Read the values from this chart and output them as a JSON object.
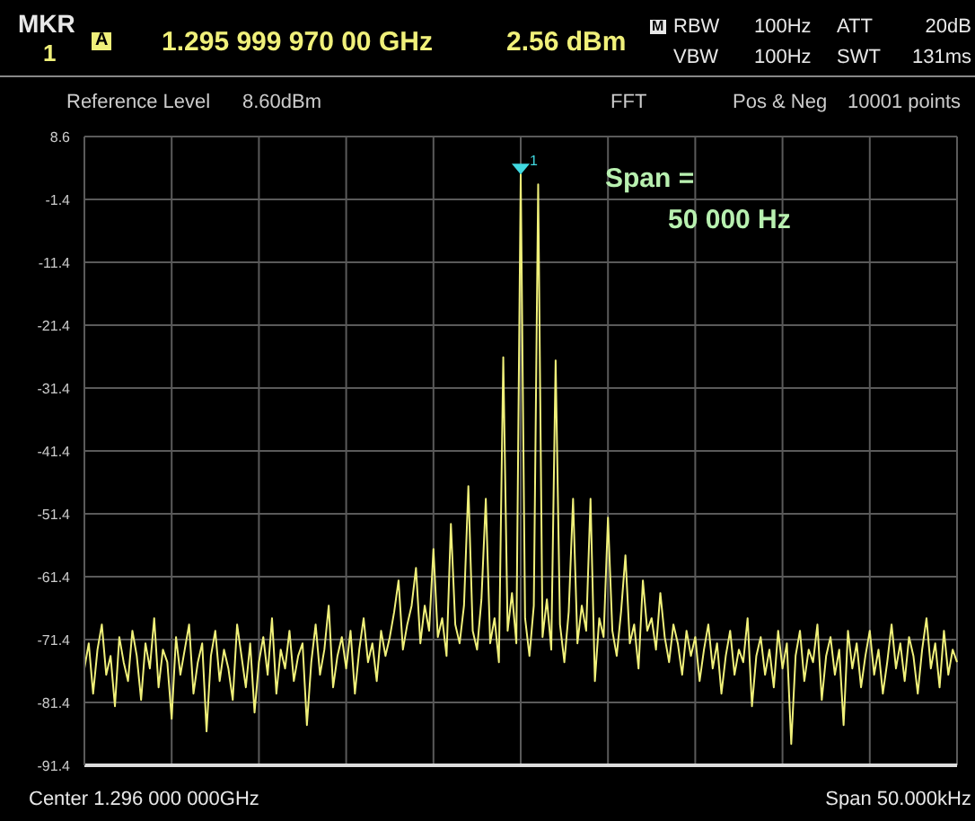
{
  "chart_data": {
    "type": "line",
    "categories": [
      null,
      null,
      null,
      null,
      null,
      null,
      null,
      null,
      null,
      null,
      null,
      null,
      null,
      null,
      null,
      null,
      null,
      null,
      null,
      null,
      null,
      null,
      null,
      null,
      null,
      null,
      null,
      null,
      null,
      null,
      null,
      null,
      null,
      null,
      null,
      null,
      null,
      null,
      null,
      null,
      null,
      null,
      null,
      null,
      null,
      null,
      null,
      null,
      null,
      null,
      null,
      null,
      null,
      null,
      null,
      null,
      null,
      null,
      null,
      null,
      null,
      null,
      null,
      null,
      null,
      null,
      null,
      null,
      null,
      null,
      null,
      null,
      null,
      null,
      null,
      null,
      null,
      null,
      null,
      null,
      null,
      null,
      null,
      null,
      null,
      null,
      null,
      null,
      null,
      null,
      null,
      null,
      null,
      null,
      null,
      null,
      null,
      null,
      null,
      null,
      null,
      null,
      null,
      null,
      null,
      null,
      null,
      null,
      null,
      null,
      null,
      null,
      null,
      null,
      null,
      null,
      null,
      null,
      null,
      null,
      null,
      null,
      null,
      null,
      null,
      null,
      null,
      null,
      null,
      null,
      null,
      null,
      null,
      null,
      null,
      null,
      null,
      null,
      null,
      null,
      null,
      null,
      null,
      null,
      null,
      null,
      null,
      null,
      null,
      null,
      null,
      null,
      null,
      null,
      null,
      null,
      null,
      null,
      null,
      null,
      null,
      null,
      null,
      null,
      null,
      null,
      null,
      null,
      null,
      null,
      null,
      null,
      null,
      null,
      null,
      null,
      null,
      null,
      null,
      null,
      null,
      null,
      null,
      null,
      null,
      null,
      null,
      null,
      null,
      null,
      null,
      null,
      null,
      null,
      null,
      null,
      null,
      null,
      null,
      null,
      null
    ],
    "series": [
      {
        "color": "#f0f07a",
        "values": [
          -76,
          -72,
          -80,
          -73,
          -69,
          -77,
          -74,
          -82,
          -71,
          -75,
          -78,
          -70,
          -74,
          -81,
          -72,
          -76,
          -68,
          -79,
          -73,
          -75,
          -84,
          -71,
          -77,
          -73,
          -69,
          -80,
          -75,
          -72,
          -86,
          -74,
          -70,
          -78,
          -73,
          -76,
          -81,
          -69,
          -74,
          -79,
          -72,
          -83,
          -75,
          -71,
          -77,
          -68,
          -80,
          -73,
          -76,
          -70,
          -78,
          -74,
          -72,
          -85,
          -75,
          -69,
          -77,
          -73,
          -66,
          -79,
          -74,
          -71,
          -76,
          -70,
          -80,
          -73,
          -68,
          -75,
          -72,
          -78,
          -70,
          -74,
          -71,
          -67,
          -62,
          -73,
          -69,
          -66,
          -60,
          -72,
          -66,
          -70,
          -57,
          -71,
          -68,
          -74,
          -53,
          -69,
          -72,
          -66,
          -47,
          -70,
          -73,
          -65,
          -49,
          -72,
          -68,
          -75,
          -26.5,
          -70,
          -64,
          -72,
          2.56,
          -68,
          -74,
          -66,
          1.0,
          -71,
          -65,
          -73,
          -27,
          -69,
          -75,
          -67,
          -49,
          -72,
          -66,
          -70,
          -49,
          -78,
          -68,
          -71,
          -52,
          -70,
          -74,
          -67,
          -58,
          -72,
          -69,
          -76,
          -62,
          -70,
          -68,
          -73,
          -64,
          -71,
          -75,
          -69,
          -72,
          -77,
          -70,
          -74,
          -71,
          -78,
          -73,
          -69,
          -76,
          -72,
          -80,
          -74,
          -70,
          -77,
          -73,
          -75,
          -68,
          -82,
          -74,
          -71,
          -77,
          -73,
          -79,
          -70,
          -76,
          -72,
          -88,
          -74,
          -70,
          -78,
          -73,
          -75,
          -69,
          -81,
          -74,
          -71,
          -77,
          -73,
          -85,
          -70,
          -76,
          -72,
          -79,
          -74,
          -70,
          -77,
          -73,
          -80,
          -75,
          -69,
          -76,
          -72,
          -78,
          -71,
          -74,
          -80,
          -73,
          -68,
          -76,
          -72,
          -79,
          -70,
          -77,
          -73,
          -75
        ]
      }
    ],
    "ylim": [
      -91.4,
      8.6
    ],
    "yticks": [
      8.6,
      -1.4,
      -11.4,
      -21.4,
      -31.4,
      -41.4,
      -51.4,
      -61.4,
      -71.4,
      -81.4,
      -91.4
    ],
    "grid": true,
    "annotations": [
      "MKR",
      "1",
      "A",
      "1.295 999 970 00 GHz",
      "2.56 dBm",
      "M",
      "RBW",
      "100Hz",
      "VBW",
      "100Hz",
      "ATT",
      "20dB",
      "SWT",
      "131ms",
      "Reference Level",
      "8.60dBm",
      "FFT",
      "Pos & Neg",
      "10001 points",
      "1",
      "Span =",
      "50 000 Hz",
      "Center 1.296 000 000GHz",
      "Span 50.000kHz"
    ]
  }
}
